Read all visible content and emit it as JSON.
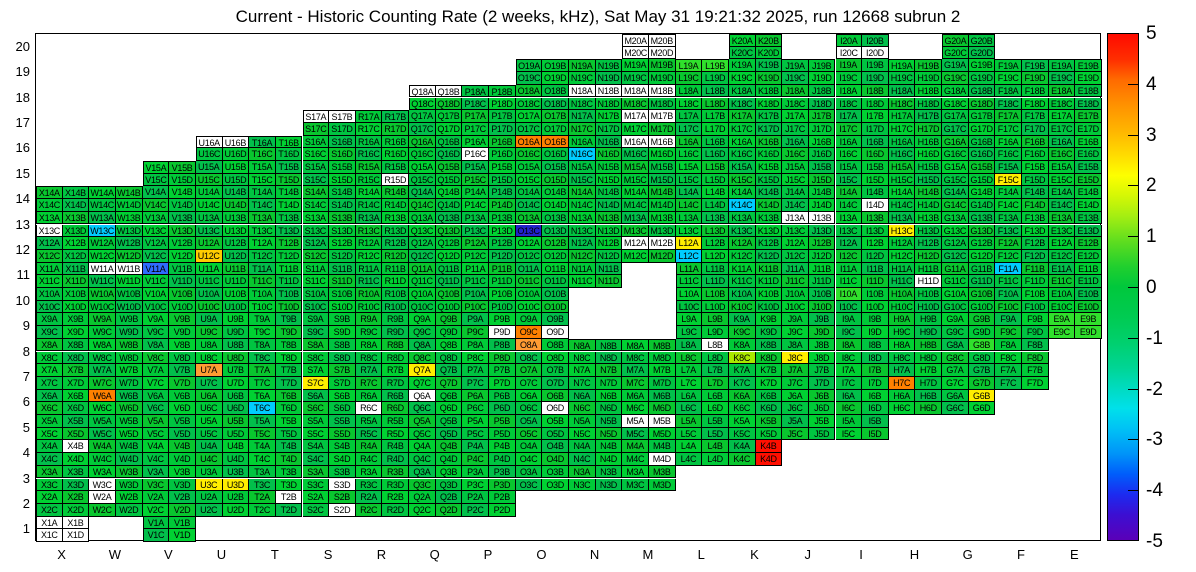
{
  "title": "Current - Historic Counting Rate (2 weeks, kHz), Sat May 31 19:21:32 2025, run 12668 subrun 2",
  "chart_data": {
    "type": "heatmap",
    "title": "Current - Historic Counting Rate (2 weeks, kHz), Sat May 31 19:21:32 2025, run 12668 subrun 2",
    "x_categories": [
      "X",
      "W",
      "V",
      "U",
      "T",
      "S",
      "R",
      "Q",
      "P",
      "O",
      "N",
      "M",
      "L",
      "K",
      "J",
      "I",
      "H",
      "G",
      "F",
      "E"
    ],
    "y_categories": [
      20,
      19,
      18,
      17,
      16,
      15,
      14,
      13,
      12,
      11,
      10,
      9,
      8,
      7,
      6,
      5,
      4,
      3,
      2,
      1
    ],
    "quadrants": [
      "A",
      "B",
      "C",
      "D"
    ],
    "zlim": [
      -5,
      5
    ],
    "default_value": 0,
    "colorbar_ticks": [
      5,
      4,
      3,
      2,
      1,
      0,
      -1,
      -2,
      -3,
      -4,
      -5
    ],
    "legend_position": "right",
    "row_cells": {
      "20": [
        "M",
        "K",
        "I",
        "G"
      ],
      "19": [
        "O",
        "N",
        "M",
        "L",
        "K",
        "J",
        "I",
        "H",
        "G",
        "F",
        "E"
      ],
      "18": [
        "Q",
        "P",
        "O",
        "N",
        "M",
        "L",
        "K",
        "J",
        "I",
        "H",
        "G",
        "F",
        "E"
      ],
      "17": [
        "S",
        "R",
        "Q",
        "P",
        "O",
        "N",
        "M",
        "L",
        "K",
        "J",
        "I",
        "H",
        "G",
        "F",
        "E"
      ],
      "16": [
        "U",
        "T",
        "S",
        "R",
        "Q",
        "P",
        "O",
        "N",
        "M",
        "L",
        "K",
        "J",
        "I",
        "H",
        "G",
        "F",
        "E"
      ],
      "15": [
        "V",
        "U",
        "T",
        "S",
        "R",
        "Q",
        "P",
        "O",
        "N",
        "M",
        "L",
        "K",
        "J",
        "I",
        "H",
        "G",
        "F",
        "E"
      ],
      "14": [
        "X",
        "W",
        "V",
        "U",
        "T",
        "S",
        "R",
        "Q",
        "P",
        "O",
        "N",
        "M",
        "L",
        "K",
        "J",
        "I",
        "H",
        "G",
        "F",
        "E"
      ],
      "13": [
        "X",
        "W",
        "V",
        "U",
        "T",
        "S",
        "R",
        "Q",
        "P",
        "O",
        "N",
        "M",
        "L",
        "K",
        "J",
        "I",
        "H",
        "G",
        "F",
        "E"
      ],
      "12": [
        "X",
        "W",
        "V",
        "U",
        "T",
        "S",
        "R",
        "Q",
        "P",
        "O",
        "N",
        "M",
        "L",
        "K",
        "J",
        "I",
        "H",
        "G",
        "F",
        "E"
      ],
      "11": [
        "X",
        "W",
        "V",
        "U",
        "T",
        "S",
        "R",
        "Q",
        "P",
        "O",
        "N",
        "L",
        "K",
        "J",
        "I",
        "H",
        "G",
        "F",
        "E"
      ],
      "10": [
        "X",
        "W",
        "V",
        "U",
        "T",
        "S",
        "R",
        "Q",
        "P",
        "O",
        "L",
        "K",
        "J",
        "I",
        "H",
        "G",
        "F",
        "E"
      ],
      "9": [
        "X",
        "W",
        "V",
        "U",
        "T",
        "S",
        "R",
        "Q",
        "P",
        "O",
        "L",
        "K",
        "J",
        "I",
        "H",
        "G",
        "F",
        "E"
      ],
      "8": [
        "X",
        "W",
        "V",
        "U",
        "T",
        "S",
        "R",
        "Q",
        "P",
        "O",
        "N",
        "M",
        "L",
        "K",
        "J",
        "I",
        "H",
        "G",
        "F"
      ],
      "7": [
        "X",
        "W",
        "V",
        "U",
        "T",
        "S",
        "R",
        "Q",
        "P",
        "O",
        "N",
        "M",
        "L",
        "K",
        "J",
        "I",
        "H",
        "G",
        "F"
      ],
      "6": [
        "X",
        "W",
        "V",
        "U",
        "T",
        "S",
        "R",
        "Q",
        "P",
        "O",
        "N",
        "M",
        "L",
        "K",
        "J",
        "I",
        "H",
        "G"
      ],
      "5": [
        "X",
        "W",
        "V",
        "U",
        "T",
        "S",
        "R",
        "Q",
        "P",
        "O",
        "N",
        "M",
        "L",
        "K",
        "J",
        "I"
      ],
      "4": [
        "X",
        "W",
        "V",
        "U",
        "T",
        "S",
        "R",
        "Q",
        "P",
        "O",
        "N",
        "M",
        "L",
        "K"
      ],
      "3": [
        "X",
        "W",
        "V",
        "U",
        "T",
        "S",
        "R",
        "Q",
        "P",
        "O",
        "N",
        "M"
      ],
      "2": [
        "X",
        "W",
        "V",
        "U",
        "T",
        "S",
        "R",
        "Q",
        "P"
      ],
      "1": [
        "X",
        "V"
      ]
    },
    "special_values": {
      "O16A": 4,
      "O16B": 4,
      "O9C": 4,
      "W6A": 4,
      "H7C": 4,
      "O8A": 3.5,
      "U7A": 3.5,
      "U12C": 3,
      "F15C": 2.5,
      "H13C": 2.5,
      "L12A": 2.5,
      "Q7A": 2.5,
      "S7C": 2.5,
      "J8C": 2.5,
      "G6B": 2.5,
      "U3C": 2.5,
      "U3D": 2.5,
      "K8C": 1.5,
      "G8B": 1,
      "I10A": 1,
      "L19A": 1,
      "L19B": 1,
      "E9A": 1,
      "E9B": 1,
      "E9C": 1,
      "E9D": 1,
      "K14C": -2.5,
      "W13C": -2.5,
      "L12C": -2.5,
      "T6C": -2.5,
      "N16C": -2.5,
      "F11A": -2.5,
      "V11A": -3.5,
      "O13C": -4.5,
      "K4B": 5,
      "K4D": 5
    },
    "no_data_cells": [
      "M20A",
      "M20B",
      "M20C",
      "M20D",
      "I20C",
      "I20D",
      "Q18A",
      "Q18B",
      "N18A",
      "N18B",
      "M18A",
      "M18B",
      "S17A",
      "S17B",
      "M17A",
      "M17B",
      "U16A",
      "U16B",
      "M16A",
      "M16B",
      "P16C",
      "R15D",
      "I14D",
      "J13A",
      "J13B",
      "X13C",
      "M12A",
      "M12B",
      "W11A",
      "W11B",
      "H11D",
      "O9D",
      "P9D",
      "L8B",
      "R6C",
      "O6D",
      "Q6A",
      "M5A",
      "M5B",
      "X4B",
      "M4D",
      "W3C",
      "S3D",
      "W2A",
      "T2B",
      "S2D",
      "X1A",
      "X1B",
      "X1C",
      "X1D"
    ]
  },
  "palette": {
    "frame": "#000000",
    "background": "#ffffff",
    "no_data": "#ffffff",
    "default_greens": [
      "#00c441",
      "#00ca38",
      "#02bf4b",
      "#00d132",
      "#09c62e"
    ],
    "value_colors": {
      "5": "#ff0f00",
      "4": "#ff8000",
      "3.5": "#ff9c33",
      "3": "#ffcc00",
      "2.5": "#ffee00",
      "1.5": "#aae800",
      "1": "#30e02c",
      "-2.5": "#00ccff",
      "-3.5": "#2f6bff",
      "-4.5": "#2222cc"
    },
    "colorbar_gradient": [
      [
        "0%",
        "#ff0a00"
      ],
      [
        "5%",
        "#ff2e00"
      ],
      [
        "9%",
        "#ff6a00"
      ],
      [
        "14%",
        "#ff9100"
      ],
      [
        "19%",
        "#ffb400"
      ],
      [
        "24%",
        "#ffdc00"
      ],
      [
        "28%",
        "#fdff00"
      ],
      [
        "32%",
        "#d4f705"
      ],
      [
        "36%",
        "#a4ee12"
      ],
      [
        "41%",
        "#5edd1f"
      ],
      [
        "46%",
        "#20cf2e"
      ],
      [
        "50%",
        "#00c83c"
      ],
      [
        "56%",
        "#00cb52"
      ],
      [
        "61%",
        "#00d06e"
      ],
      [
        "66%",
        "#00d595"
      ],
      [
        "70%",
        "#00dbc0"
      ],
      [
        "74%",
        "#00e0ea"
      ],
      [
        "78%",
        "#00c2f5"
      ],
      [
        "83%",
        "#0093f8"
      ],
      [
        "87%",
        "#005dfb"
      ],
      [
        "91%",
        "#1c2bf0"
      ],
      [
        "95%",
        "#3c0fd2"
      ],
      [
        "100%",
        "#5a00b8"
      ]
    ]
  }
}
